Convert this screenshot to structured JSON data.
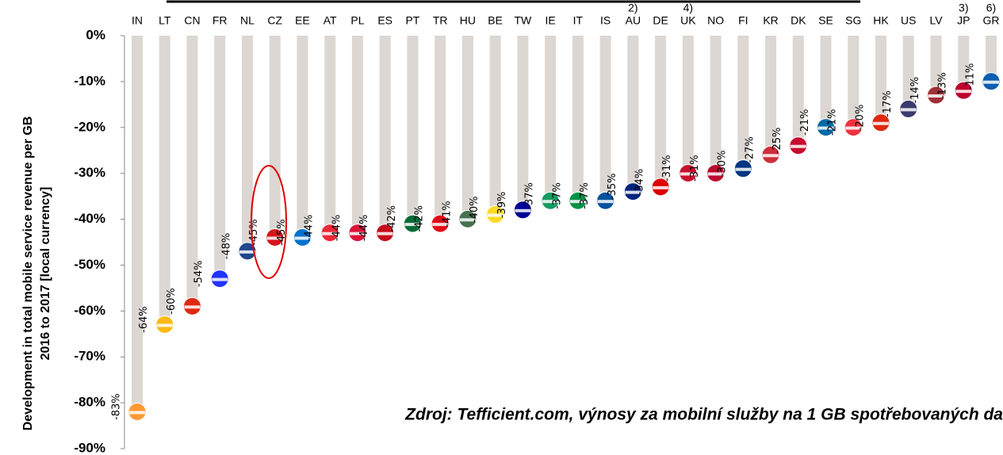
{
  "chart_data": {
    "type": "bar",
    "y_label": [
      "Development in total mobile service revenue per GB",
      "2016 to 2017 [local currency]"
    ],
    "annotation": "Zdroj: Tefficient.com, výnosy za mobilní služby na 1 GB spotřebovaných da",
    "categories": [
      "IN",
      "LT",
      "CN",
      "FR",
      "NL",
      "CZ",
      "EE",
      "AT",
      "PL",
      "ES",
      "PT",
      "TR",
      "HU",
      "BE",
      "TW",
      "IE",
      "IT",
      "IS",
      "AU",
      "DE",
      "UK",
      "NO",
      "FI",
      "KR",
      "DK",
      "SE",
      "SG",
      "HK",
      "US",
      "LV",
      "JP",
      "GR"
    ],
    "category_notes": [
      null,
      null,
      null,
      null,
      null,
      null,
      null,
      null,
      null,
      null,
      null,
      null,
      null,
      null,
      null,
      null,
      null,
      null,
      "2)",
      null,
      "4)",
      null,
      null,
      null,
      null,
      null,
      null,
      null,
      null,
      null,
      "3)",
      "6)"
    ],
    "values": [
      -83,
      -64,
      -60,
      -54,
      -48,
      -45,
      -45,
      -44,
      -44,
      -44,
      -42,
      -42,
      -41,
      -40,
      -39,
      -37,
      -37,
      -37,
      -35,
      -34,
      -31,
      -31,
      -30,
      -27,
      -25,
      -21,
      -21,
      -20,
      -17,
      -14,
      -13,
      -11
    ],
    "value_labels": [
      "-83%",
      "-64%",
      "-60%",
      "-54%",
      "-48%",
      "-45%",
      "-45%",
      "-44%",
      "-44%",
      "-44%",
      "-42%",
      "-42%",
      "-41%",
      "-40%",
      "-39%",
      "-37%",
      "-37%",
      "-37%",
      "-35%",
      "-34%",
      "-31%",
      "-31%",
      "-30%",
      "-27%",
      "-25%",
      "-21%",
      "-21%",
      "-20%",
      "-17%",
      "-14%",
      "-13%",
      "-11%"
    ],
    "color": "#dcd7d2",
    "marker_colors": [
      "#ff9933",
      "#fdb913",
      "#de2910",
      "#2233ff",
      "#21468b",
      "#d7141a",
      "#0072ce",
      "#ed2939",
      "#dc143c",
      "#c60b1e",
      "#046a38",
      "#e30a17",
      "#477050",
      "#fdda24",
      "#000095",
      "#169b62",
      "#009246",
      "#02529c",
      "#00247d",
      "#dd0000",
      "#c8102e",
      "#ba0c2f",
      "#003580",
      "#cd2e3a",
      "#c60c30",
      "#006aa7",
      "#ef3340",
      "#de2910",
      "#3c3b6e",
      "#9e3039",
      "#bc002d",
      "#0d5eaf"
    ],
    "ylim": [
      -90,
      0
    ],
    "yticks": [
      {
        "value": 0,
        "label": "0%"
      },
      {
        "value": -10,
        "label": "-10%"
      },
      {
        "value": -20,
        "label": "-20%"
      },
      {
        "value": -30,
        "label": "-30%"
      },
      {
        "value": -40,
        "label": "-40%"
      },
      {
        "value": -50,
        "label": "-50%"
      },
      {
        "value": -60,
        "label": "-60%"
      },
      {
        "value": -70,
        "label": "-70%"
      },
      {
        "value": -80,
        "label": "-80%"
      },
      {
        "value": -90,
        "label": "-90%"
      }
    ]
  }
}
